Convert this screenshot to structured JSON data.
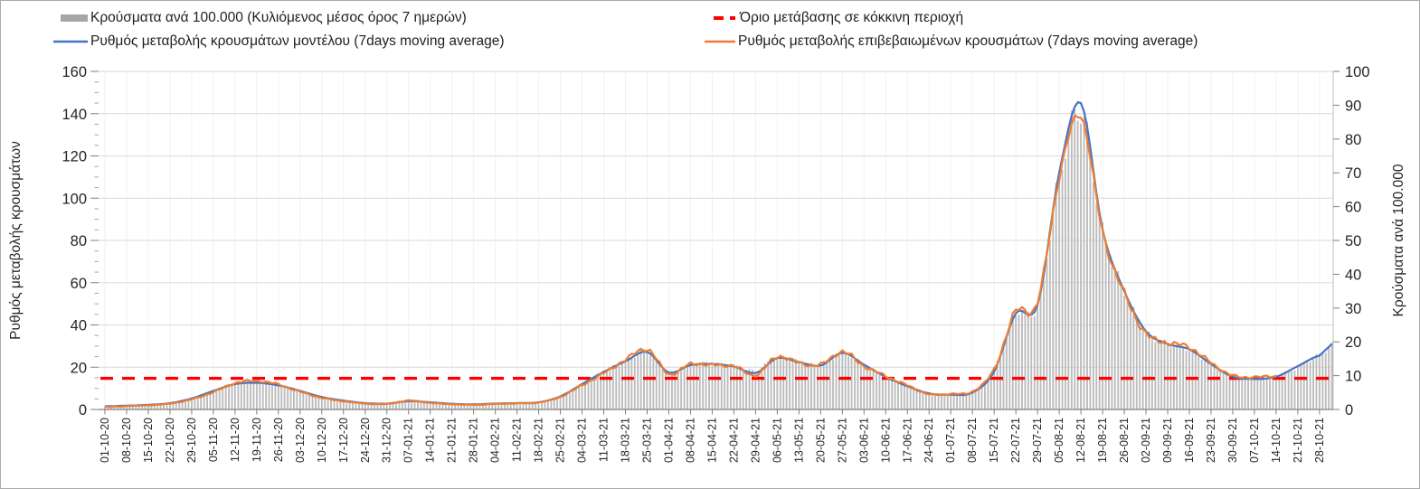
{
  "figure": {
    "background": "#ffffff",
    "border_color": "#ababab"
  },
  "legend": {
    "items": [
      {
        "id": "cases-per-100k",
        "label": "Κρούσματα ανά 100.000 (Κυλιόμενος μέσος όρος 7 ημερών)",
        "swatch": "bar",
        "color": "#a6a6a6"
      },
      {
        "id": "red-threshold",
        "label": "Όριο μετάβασης σε κόκκινη περιοχή",
        "swatch": "dashed-line",
        "color": "#ff0000"
      },
      {
        "id": "model-rate",
        "label": "Ρυθμός μεταβολής κρουσμάτων μοντέλου (7days moving average)",
        "swatch": "line",
        "color": "#4472c4"
      },
      {
        "id": "confirmed-rate",
        "label": "Ρυθμός μεταβολής επιβεβαιωμένων κρουσμάτων (7days moving average)",
        "swatch": "line",
        "color": "#ed7d31"
      }
    ]
  },
  "chart_data": {
    "type": "combo",
    "left_axis": {
      "title": "Ρυθμός μεταβολής κρουσμάτων",
      "min": 0,
      "max": 160,
      "step": 20,
      "minor_step": 5
    },
    "right_axis": {
      "title": "Κρούσματα ανά 100.000",
      "min": 0,
      "max": 100,
      "step": 10
    },
    "x_tick_labels": [
      "01-10-20",
      "08-10-20",
      "15-10-20",
      "22-10-20",
      "29-10-20",
      "05-11-20",
      "12-11-20",
      "19-11-20",
      "26-11-20",
      "03-12-20",
      "10-12-20",
      "17-12-20",
      "24-12-20",
      "31-12-20",
      "07-01-21",
      "14-01-21",
      "21-01-21",
      "28-01-21",
      "04-02-21",
      "11-02-21",
      "18-02-21",
      "25-02-21",
      "04-03-21",
      "11-03-21",
      "18-03-21",
      "25-03-21",
      "01-04-21",
      "08-04-21",
      "15-04-21",
      "22-04-21",
      "29-04-21",
      "06-05-21",
      "13-05-21",
      "20-05-21",
      "27-05-21",
      "03-06-21",
      "10-06-21",
      "17-06-21",
      "24-06-21",
      "01-07-21",
      "08-07-21",
      "15-07-21",
      "22-07-21",
      "29-07-21",
      "05-08-21",
      "12-08-21",
      "19-08-21",
      "26-08-21",
      "02-09-21",
      "09-09-21",
      "16-09-21",
      "23-09-21",
      "30-09-21",
      "07-10-21",
      "14-10-21",
      "21-10-21",
      "28-10-21"
    ],
    "threshold_line": {
      "name": "Όριο μετάβασης σε κόκκινη περιοχή",
      "axis": "right",
      "value": 10,
      "color": "#ff0000",
      "style": "dashed"
    },
    "gridlines": {
      "horizontal": true,
      "vertical": true
    },
    "series": [
      {
        "name": "Κρούσματα ανά 100.000 (Κυλιόμενος μέσος όρος 7 ημερών)",
        "type": "bar",
        "axis": "right",
        "color": "#bcbcbc",
        "weekly_values": [
          0.9,
          1.0,
          1.2,
          1.7,
          2.9,
          5.2,
          7.8,
          8.2,
          7.2,
          5.4,
          3.7,
          2.6,
          1.9,
          1.8,
          2.5,
          2.2,
          1.7,
          1.6,
          1.8,
          1.9,
          2.1,
          3.9,
          7.5,
          11.2,
          14.3,
          17.1,
          11.0,
          13.2,
          13.5,
          12.8,
          11.5,
          15.4,
          14.1,
          13.1,
          16.8,
          13.1,
          9.6,
          6.8,
          4.6,
          4.5,
          5.2,
          12.0,
          28.5,
          31.0,
          69.0,
          88.0,
          53.0,
          35.0,
          23.0,
          19.5,
          17.8,
          13.5,
          9.7,
          9.2,
          9.8,
          12.5,
          16.0
        ],
        "extend_days": 4,
        "end_value": 19.0
      },
      {
        "name": "Ρυθμός μεταβολής κρουσμάτων μοντέλου (7days moving average)",
        "type": "line",
        "axis": "left",
        "color": "#4472c4",
        "weekly_values": [
          1.5,
          1.8,
          2.2,
          3.0,
          5.2,
          8.8,
          12.0,
          12.6,
          11.4,
          8.8,
          5.9,
          4.2,
          3.0,
          2.8,
          3.9,
          3.4,
          2.7,
          2.4,
          2.8,
          3.0,
          3.4,
          6.2,
          12.0,
          17.8,
          22.8,
          27.2,
          17.5,
          21.0,
          21.5,
          20.3,
          17.3,
          24.3,
          22.4,
          20.8,
          26.8,
          21.2,
          15.4,
          11.0,
          7.6,
          7.0,
          8.0,
          18.0,
          45.5,
          49.5,
          112.0,
          145.0,
          85.0,
          56.0,
          37.0,
          31.0,
          28.5,
          21.5,
          15.5,
          14.5,
          15.5,
          20.5,
          25.5
        ],
        "extend_days": 4,
        "end_value": 31.0
      },
      {
        "name": "Ρυθμός μεταβολής επιβεβαιωμένων κρουσμάτων (7days moving average)",
        "type": "line",
        "axis": "left",
        "color": "#ed7d31",
        "weekly_values": [
          1.2,
          1.6,
          2.0,
          2.8,
          4.8,
          8.2,
          12.5,
          13.5,
          11.8,
          8.4,
          5.5,
          3.9,
          2.8,
          2.6,
          4.2,
          3.1,
          2.5,
          2.2,
          2.6,
          2.9,
          3.3,
          6.0,
          11.5,
          17.2,
          23.5,
          28.5,
          16.8,
          21.5,
          21.0,
          20.5,
          16.2,
          25.0,
          22.0,
          21.2,
          27.3,
          20.6,
          15.8,
          11.4,
          7.2,
          7.4,
          8.5,
          19.0,
          46.5,
          50.5,
          110.0,
          139.0,
          84.0,
          55.0,
          36.0,
          31.5,
          29.5,
          22.0,
          16.0,
          15.3,
          15.8
        ],
        "extend_days": 0,
        "end_value": null
      }
    ]
  }
}
